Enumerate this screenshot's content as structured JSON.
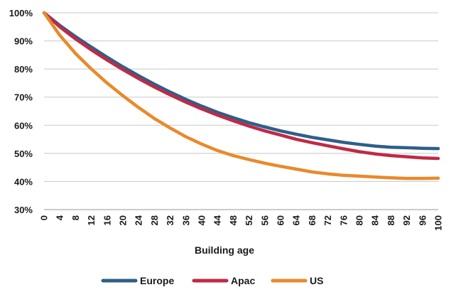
{
  "chart_data": {
    "type": "line",
    "title": "",
    "xlabel": "Building age",
    "ylabel": "",
    "xlim": [
      0,
      100
    ],
    "ylim": [
      30,
      100
    ],
    "x_ticks": [
      0,
      4,
      8,
      12,
      16,
      20,
      24,
      28,
      32,
      36,
      40,
      44,
      48,
      52,
      56,
      60,
      64,
      68,
      72,
      76,
      80,
      84,
      88,
      92,
      96,
      100
    ],
    "x_tick_labels": [
      "0",
      "4",
      "8",
      "12",
      "16",
      "20",
      "24",
      "28",
      "32",
      "36",
      "40",
      "44",
      "48",
      "52",
      "56",
      "60",
      "64",
      "68",
      "72",
      "76",
      "80",
      "84",
      "88",
      "92",
      "96",
      "100"
    ],
    "y_ticks": [
      30,
      40,
      50,
      60,
      70,
      80,
      90,
      100
    ],
    "y_tick_labels": [
      "30%",
      "40%",
      "50%",
      "60%",
      "70%",
      "80%",
      "90%",
      "100%"
    ],
    "grid": "horizontal",
    "legend_position": "bottom",
    "x": [
      0,
      4,
      8,
      12,
      16,
      20,
      24,
      28,
      32,
      36,
      40,
      44,
      48,
      52,
      56,
      60,
      64,
      68,
      72,
      76,
      80,
      84,
      88,
      92,
      96,
      100
    ],
    "series": [
      {
        "name": "Europe",
        "color": "#2e5f8a",
        "values": [
          100,
          95.5,
          91.5,
          87.8,
          84.2,
          80.8,
          77.6,
          74.6,
          71.8,
          69.2,
          66.8,
          64.6,
          62.7,
          60.9,
          59.4,
          58.0,
          56.8,
          55.7,
          54.8,
          53.9,
          53.2,
          52.6,
          52.2,
          52.0,
          51.8,
          51.7
        ]
      },
      {
        "name": "Apac",
        "color": "#bf2a45",
        "values": [
          100,
          95.0,
          90.7,
          86.8,
          83.2,
          79.8,
          76.6,
          73.6,
          70.8,
          68.2,
          65.8,
          63.6,
          61.6,
          59.7,
          58.0,
          56.5,
          55.0,
          53.8,
          52.7,
          51.6,
          50.6,
          49.8,
          49.2,
          48.8,
          48.4,
          48.2
        ]
      },
      {
        "name": "US",
        "color": "#e88a2b",
        "values": [
          100,
          92.0,
          85.5,
          80.0,
          75.0,
          70.5,
          66.3,
          62.4,
          59.0,
          55.9,
          53.3,
          51.0,
          49.2,
          47.8,
          46.5,
          45.4,
          44.4,
          43.4,
          42.7,
          42.2,
          41.9,
          41.6,
          41.3,
          41.1,
          41.1,
          41.2
        ]
      }
    ]
  }
}
